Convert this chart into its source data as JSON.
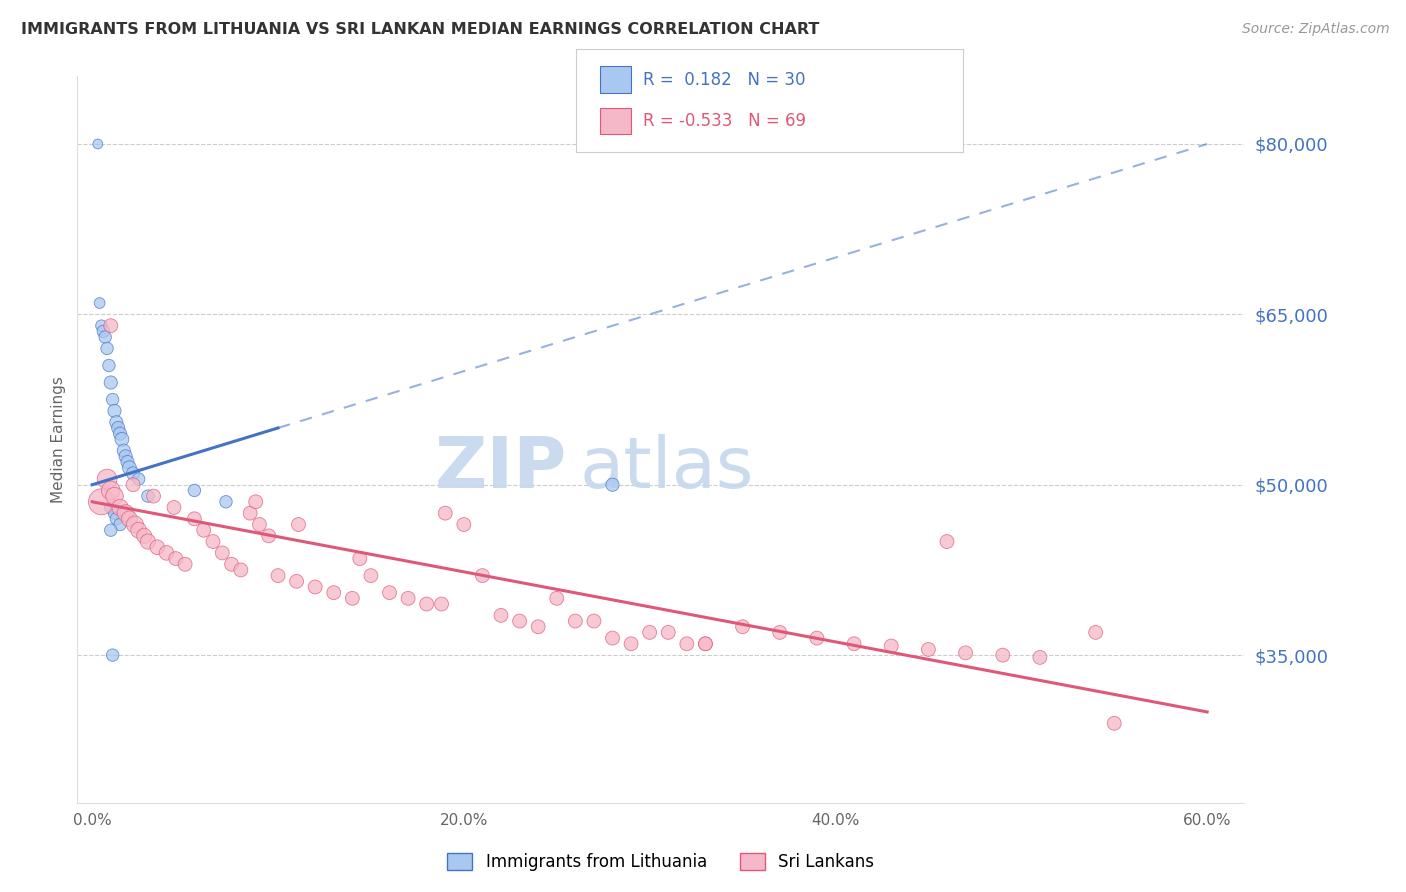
{
  "title": "IMMIGRANTS FROM LITHUANIA VS SRI LANKAN MEDIAN EARNINGS CORRELATION CHART",
  "source": "Source: ZipAtlas.com",
  "ylabel": "Median Earnings",
  "x_ticks": [
    0.0,
    10.0,
    20.0,
    30.0,
    40.0,
    50.0,
    60.0
  ],
  "x_tick_labels": [
    "0.0%",
    "",
    "20.0%",
    "",
    "40.0%",
    "",
    "60.0%"
  ],
  "y_labels": [
    35000,
    50000,
    65000,
    80000
  ],
  "y_label_strs": [
    "$35,000",
    "$50,000",
    "$65,000",
    "$80,000"
  ],
  "y_min": 22000,
  "y_max": 86000,
  "x_min": -0.8,
  "x_max": 62.0,
  "legend_labels": [
    "Immigrants from Lithuania",
    "Sri Lankans"
  ],
  "blue_R": "0.182",
  "blue_N": "30",
  "pink_R": "-0.533",
  "pink_N": "69",
  "blue_color": "#A8C8F0",
  "pink_color": "#F5B8C8",
  "blue_line_color": "#4472C4",
  "pink_line_color": "#E05878",
  "grid_color": "#CCCCCC",
  "title_color": "#333333",
  "source_color": "#999999",
  "right_label_color": "#4472C4",
  "blue_scatter_x": [
    0.3,
    0.4,
    0.5,
    0.6,
    0.7,
    0.8,
    0.9,
    1.0,
    1.1,
    1.2,
    1.3,
    1.4,
    1.5,
    1.6,
    1.7,
    1.8,
    1.9,
    2.0,
    2.2,
    2.5,
    3.0,
    5.5,
    7.2,
    1.0,
    1.2,
    1.3,
    1.5,
    1.0,
    1.1,
    28.0
  ],
  "blue_scatter_y": [
    80000,
    66000,
    64000,
    63500,
    63000,
    62000,
    60500,
    59000,
    57500,
    56500,
    55500,
    55000,
    54500,
    54000,
    53000,
    52500,
    52000,
    51500,
    51000,
    50500,
    49000,
    49500,
    48500,
    48000,
    47500,
    47000,
    46500,
    46000,
    35000,
    50000
  ],
  "blue_scatter_s": [
    50,
    60,
    70,
    80,
    80,
    80,
    80,
    90,
    80,
    90,
    90,
    90,
    90,
    100,
    90,
    90,
    90,
    100,
    90,
    80,
    80,
    80,
    80,
    80,
    80,
    80,
    80,
    80,
    80,
    90
  ],
  "pink_scatter_x": [
    0.5,
    0.8,
    1.0,
    1.2,
    1.5,
    1.8,
    2.0,
    2.3,
    2.5,
    2.8,
    3.0,
    3.5,
    4.0,
    4.5,
    5.0,
    5.5,
    6.0,
    6.5,
    7.0,
    7.5,
    8.0,
    8.5,
    9.0,
    9.5,
    10.0,
    11.0,
    12.0,
    13.0,
    14.0,
    15.0,
    16.0,
    17.0,
    18.0,
    19.0,
    20.0,
    21.0,
    22.0,
    23.0,
    24.0,
    25.0,
    26.0,
    27.0,
    28.0,
    29.0,
    30.0,
    31.0,
    32.0,
    33.0,
    35.0,
    37.0,
    39.0,
    41.0,
    43.0,
    45.0,
    47.0,
    49.0,
    51.0,
    1.0,
    2.2,
    3.3,
    4.4,
    8.8,
    11.1,
    14.4,
    18.8,
    33.0,
    46.0,
    54.0,
    55.0
  ],
  "pink_scatter_s": [
    350,
    200,
    180,
    160,
    140,
    150,
    130,
    150,
    130,
    120,
    120,
    110,
    110,
    100,
    100,
    100,
    100,
    100,
    100,
    100,
    100,
    100,
    100,
    100,
    100,
    100,
    100,
    100,
    100,
    100,
    100,
    100,
    100,
    100,
    100,
    100,
    100,
    100,
    100,
    100,
    100,
    100,
    100,
    100,
    100,
    100,
    100,
    100,
    100,
    100,
    100,
    100,
    100,
    100,
    100,
    100,
    100,
    100,
    100,
    100,
    100,
    100,
    100,
    100,
    100,
    100,
    100,
    100,
    100
  ],
  "pink_scatter_y": [
    48500,
    50500,
    49500,
    49000,
    48000,
    47500,
    47000,
    46500,
    46000,
    45500,
    45000,
    44500,
    44000,
    43500,
    43000,
    47000,
    46000,
    45000,
    44000,
    43000,
    42500,
    47500,
    46500,
    45500,
    42000,
    41500,
    41000,
    40500,
    40000,
    42000,
    40500,
    40000,
    39500,
    47500,
    46500,
    42000,
    38500,
    38000,
    37500,
    40000,
    38000,
    38000,
    36500,
    36000,
    37000,
    37000,
    36000,
    36000,
    37500,
    37000,
    36500,
    36000,
    35800,
    35500,
    35200,
    35000,
    34800,
    64000,
    50000,
    49000,
    48000,
    48500,
    46500,
    43500,
    39500,
    36000,
    45000,
    37000,
    29000
  ],
  "blue_trend_x0": 0,
  "blue_trend_x_solid_end": 10,
  "blue_trend_x1": 60,
  "blue_trend_y0": 50000,
  "blue_trend_y1": 80000,
  "pink_trend_x0": 0,
  "pink_trend_x1": 60,
  "pink_trend_y0": 48500,
  "pink_trend_y1": 30000,
  "watermark_zip": "ZIP",
  "watermark_atlas": "atlas",
  "watermark_color_zip": "#C8D8EC",
  "watermark_color_atlas": "#C8D8EC"
}
